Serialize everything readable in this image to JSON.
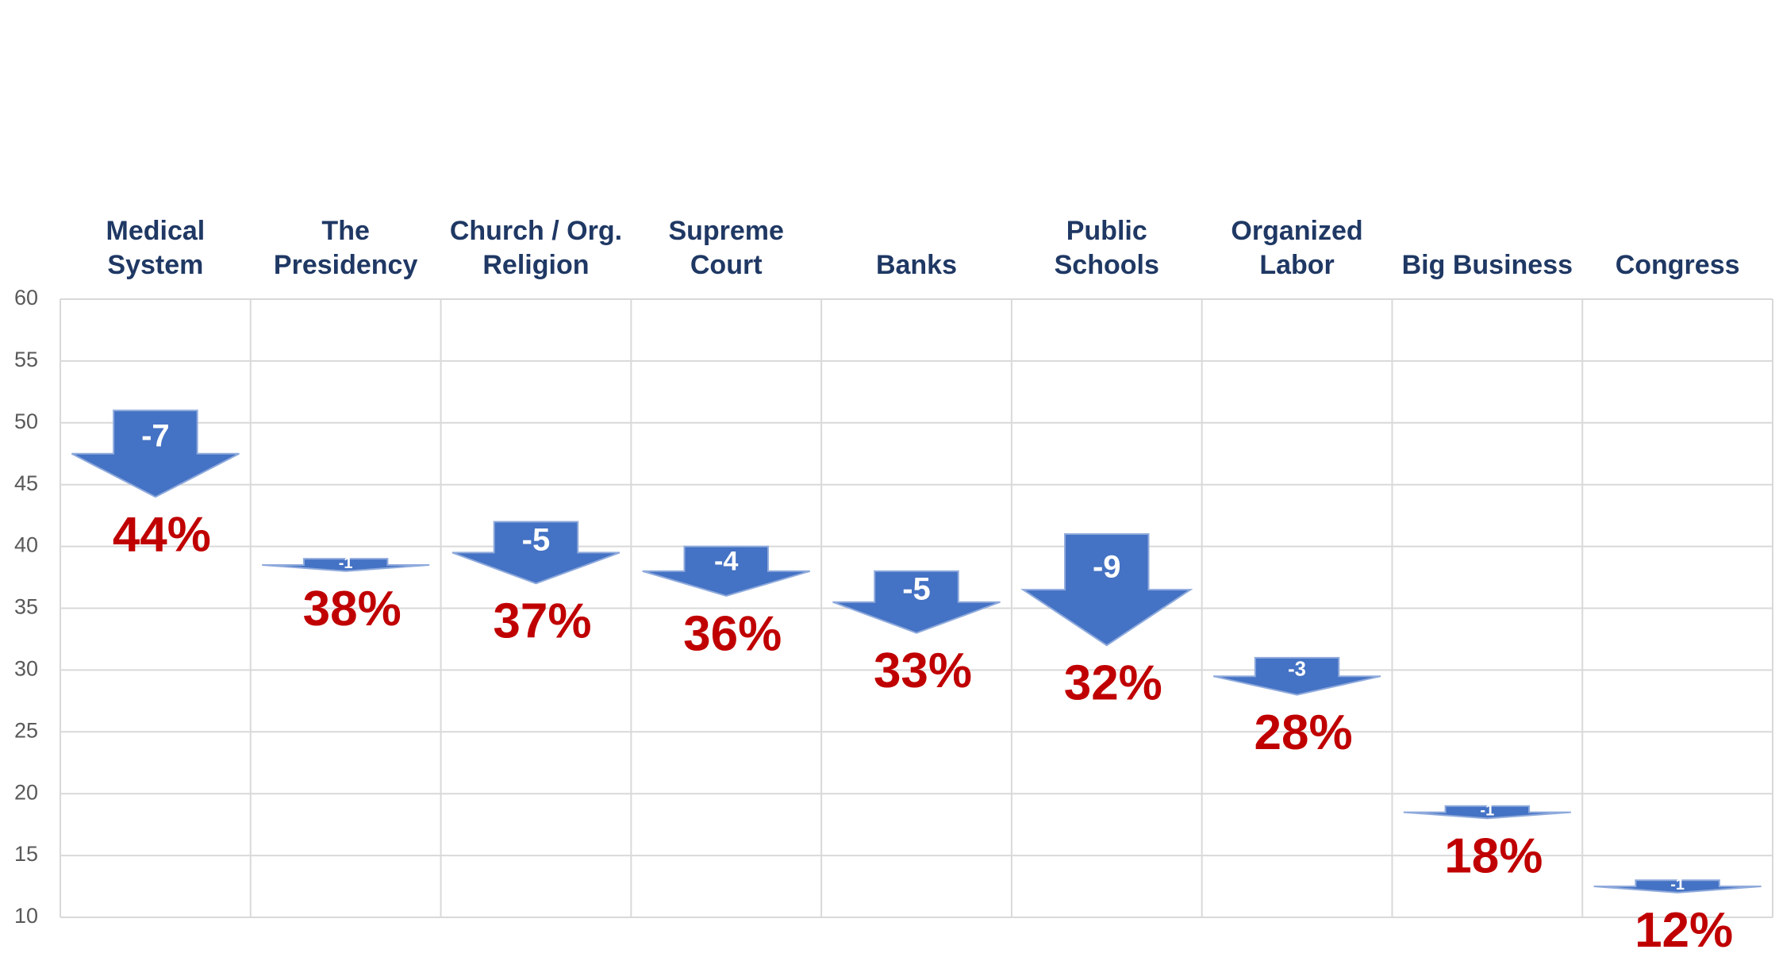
{
  "chart_data": {
    "type": "arrow",
    "categories": [
      "Medical System",
      "The Presidency",
      "Church / Org. Religion",
      "Supreme Court",
      "Banks",
      "Public Schools",
      "Organized Labor",
      "Big Business",
      "Congress"
    ],
    "values": [
      44,
      38,
      37,
      36,
      33,
      32,
      28,
      18,
      12
    ],
    "value_labels": [
      "44%",
      "38%",
      "37%",
      "36%",
      "33%",
      "32%",
      "28%",
      "18%",
      "12%"
    ],
    "changes": [
      -7,
      -1,
      -5,
      -4,
      -5,
      -9,
      -3,
      -1,
      -1
    ],
    "color": "#4472c4",
    "label_color": "#c00000",
    "ylim": [
      10,
      60
    ],
    "yticks": [
      10,
      15,
      20,
      25,
      30,
      35,
      40,
      45,
      50,
      55,
      60
    ],
    "grid": true
  }
}
